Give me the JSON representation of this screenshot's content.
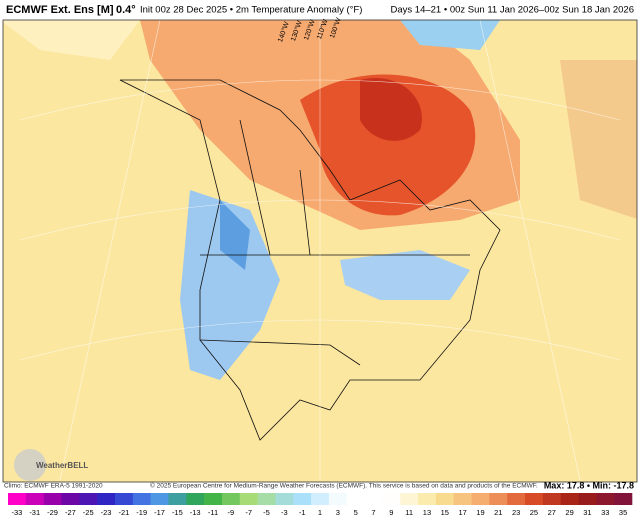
{
  "header": {
    "title": "ECMWF Ext. Ens [M]",
    "resolution": "0.4°",
    "subtitle": "Init 00z 28 Dec 2025 • 2m Temperature Anomaly (°F)",
    "valid": "Days 14–21 • 00z Sun 11 Jan 2026–00z Sun 18 Jan 2026"
  },
  "map": {
    "longitude_labels": [
      "140°W",
      "130°W",
      "120°W",
      "110°W",
      "100°W"
    ],
    "logo": "WeatherBELL"
  },
  "footer": {
    "climo": "Climo: ECMWF ERA-5 1991-2020",
    "copyright": "© 2025 European Centre for Medium-Range Weather Forecasts (ECMWF). This service is based on data and products of the ECMWF.",
    "maxmin": "Max: 17.8 • Min: -17.8"
  },
  "colorbar": {
    "labels": [
      -33,
      -31,
      -29,
      -27,
      -25,
      -23,
      -21,
      -19,
      -17,
      -15,
      -13,
      -11,
      -9,
      -7,
      -5,
      -3,
      -1,
      1,
      3,
      5,
      7,
      9,
      11,
      13,
      15,
      17,
      19,
      21,
      23,
      25,
      27,
      29,
      31,
      33,
      35
    ]
  }
}
